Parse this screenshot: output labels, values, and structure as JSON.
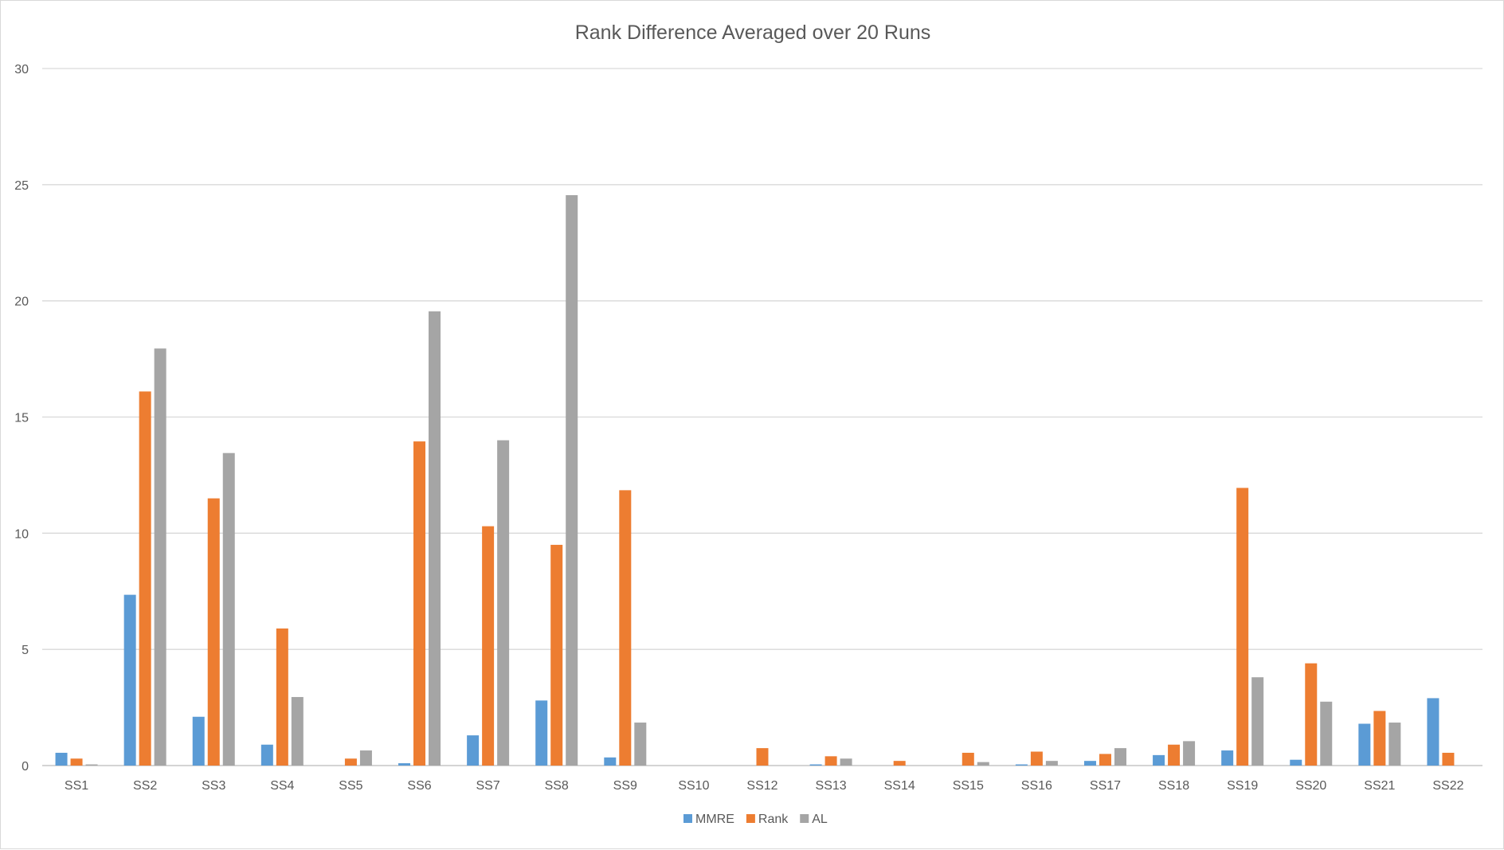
{
  "chart_data": {
    "type": "bar",
    "title": "Rank Difference Averaged over 20 Runs",
    "xlabel": "",
    "ylabel": "",
    "ylim": [
      0,
      30
    ],
    "yticks": [
      0,
      5,
      10,
      15,
      20,
      25,
      30
    ],
    "grid": true,
    "legend_position": "bottom",
    "categories": [
      "SS1",
      "SS2",
      "SS3",
      "SS4",
      "SS5",
      "SS6",
      "SS7",
      "SS8",
      "SS9",
      "SS10",
      "SS12",
      "SS13",
      "SS14",
      "SS15",
      "SS16",
      "SS17",
      "SS18",
      "SS19",
      "SS20",
      "SS21",
      "SS22"
    ],
    "series": [
      {
        "name": "MMRE",
        "color": "#5B9BD5",
        "values": [
          0.55,
          7.35,
          2.1,
          0.9,
          0,
          0.1,
          1.3,
          2.8,
          0.35,
          0,
          0,
          0.05,
          0,
          0,
          0.05,
          0.2,
          0.45,
          0.65,
          0.25,
          1.8,
          2.9
        ]
      },
      {
        "name": "Rank",
        "color": "#ED7D31",
        "values": [
          0.3,
          16.1,
          11.5,
          5.9,
          0.3,
          13.95,
          10.3,
          9.5,
          11.85,
          0,
          0.75,
          0.4,
          0.2,
          0.55,
          0.6,
          0.5,
          0.9,
          11.95,
          4.4,
          2.35,
          0.55
        ]
      },
      {
        "name": "AL",
        "color": "#A5A5A5",
        "values": [
          0.05,
          17.95,
          13.45,
          2.95,
          0.65,
          19.55,
          14.0,
          24.55,
          1.85,
          0,
          0,
          0.3,
          0,
          0.15,
          0.2,
          0.75,
          1.05,
          3.8,
          2.75,
          1.85,
          0
        ]
      }
    ]
  }
}
